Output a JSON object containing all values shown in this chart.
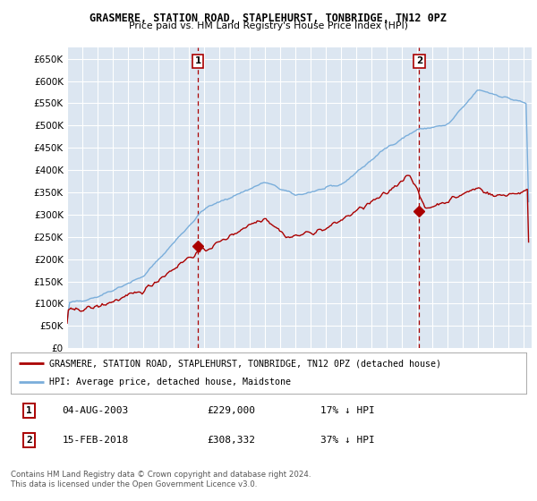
{
  "title": "GRASMERE, STATION ROAD, STAPLEHURST, TONBRIDGE, TN12 0PZ",
  "subtitle": "Price paid vs. HM Land Registry's House Price Index (HPI)",
  "xlim_start": 1995.0,
  "xlim_end": 2025.5,
  "ylim_min": 0,
  "ylim_max": 675000,
  "yticks": [
    0,
    50000,
    100000,
    150000,
    200000,
    250000,
    300000,
    350000,
    400000,
    450000,
    500000,
    550000,
    600000,
    650000
  ],
  "ytick_labels": [
    "£0",
    "£50K",
    "£100K",
    "£150K",
    "£200K",
    "£250K",
    "£300K",
    "£350K",
    "£400K",
    "£450K",
    "£500K",
    "£550K",
    "£600K",
    "£650K"
  ],
  "hpi_color": "#7aaedb",
  "price_color": "#aa0000",
  "marker1_x": 2003.583,
  "marker1_y": 229000,
  "marker2_x": 2018.12,
  "marker2_y": 308332,
  "legend_price_label": "GRASMERE, STATION ROAD, STAPLEHURST, TONBRIDGE, TN12 0PZ (detached house)",
  "legend_hpi_label": "HPI: Average price, detached house, Maidstone",
  "footnote": "Contains HM Land Registry data © Crown copyright and database right 2024.\nThis data is licensed under the Open Government Licence v3.0.",
  "bg_color": "#dce6f1",
  "grid_color": "#ffffff"
}
